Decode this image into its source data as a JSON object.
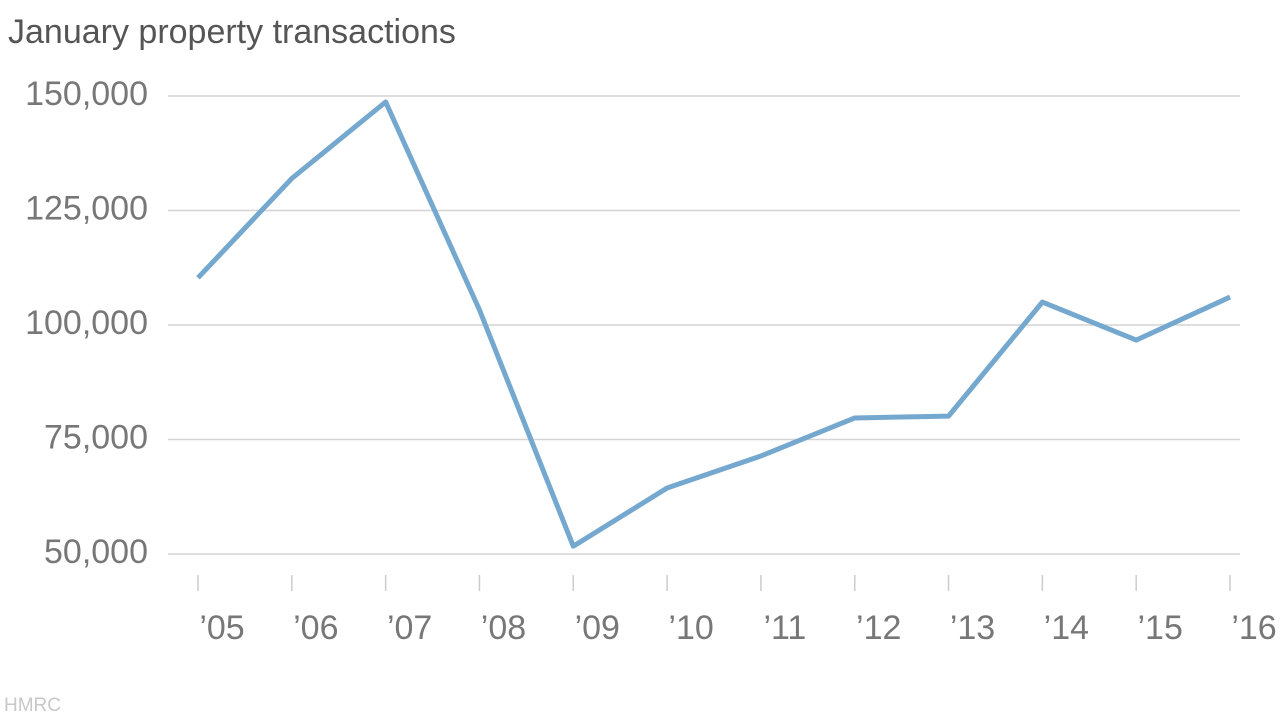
{
  "chart_data": {
    "type": "line",
    "title": "January property transactions",
    "source": "HMRC",
    "categories": [
      "’05",
      "’06",
      "’07",
      "’08",
      "’09",
      "’10",
      "’11",
      "’12",
      "’13",
      "’14",
      "’15",
      "’16"
    ],
    "series": [
      {
        "color": "#75a8cf",
        "values": [
          110300,
          132000,
          148700,
          103300,
          51700,
          64400,
          71400,
          79700,
          80100,
          105000,
          96700,
          106100
        ]
      }
    ],
    "ylim": [
      50000,
      150000
    ],
    "yticks": [
      {
        "value": 50000,
        "label": "50,000"
      },
      {
        "value": 75000,
        "label": "75,000"
      },
      {
        "value": 100000,
        "label": "100,000"
      },
      {
        "value": 125000,
        "label": "125,000"
      },
      {
        "value": 150000,
        "label": "150,000"
      }
    ],
    "grid": true
  }
}
